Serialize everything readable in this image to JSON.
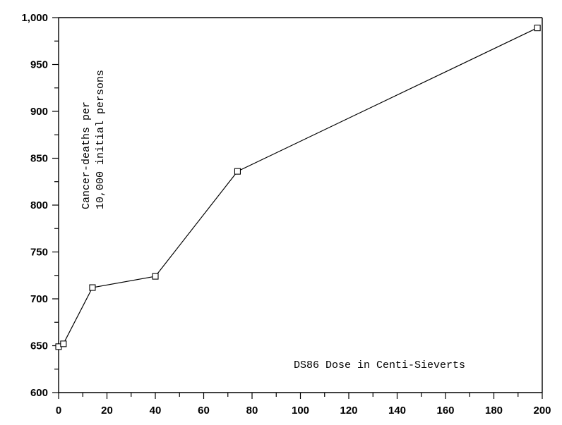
{
  "chart_data": {
    "type": "line",
    "title": "",
    "xlabel": "DS86 Dose in Centi-Sieverts",
    "ylabel_lines": [
      "Cancer-deaths per",
      "10,000 initial persons"
    ],
    "xlim": [
      0,
      200
    ],
    "ylim": [
      600,
      1000
    ],
    "x_ticks": [
      0,
      20,
      40,
      60,
      80,
      100,
      120,
      140,
      160,
      180,
      200
    ],
    "x_tick_labels": [
      "0",
      "20",
      "40",
      "60",
      "80",
      "100",
      "120",
      "140",
      "160",
      "180",
      "200"
    ],
    "y_ticks": [
      600,
      650,
      700,
      750,
      800,
      850,
      900,
      950,
      1000
    ],
    "y_tick_labels": [
      "600",
      "650",
      "700",
      "750",
      "800",
      "850",
      "900",
      "950",
      "1,000"
    ],
    "x_minor_step": 10,
    "y_minor_step": 25,
    "grid": false,
    "marker": "square",
    "series": [
      {
        "x": [
          0,
          2,
          14,
          40,
          74,
          198
        ],
        "y": [
          649,
          652,
          712,
          724,
          836,
          989
        ]
      }
    ]
  }
}
